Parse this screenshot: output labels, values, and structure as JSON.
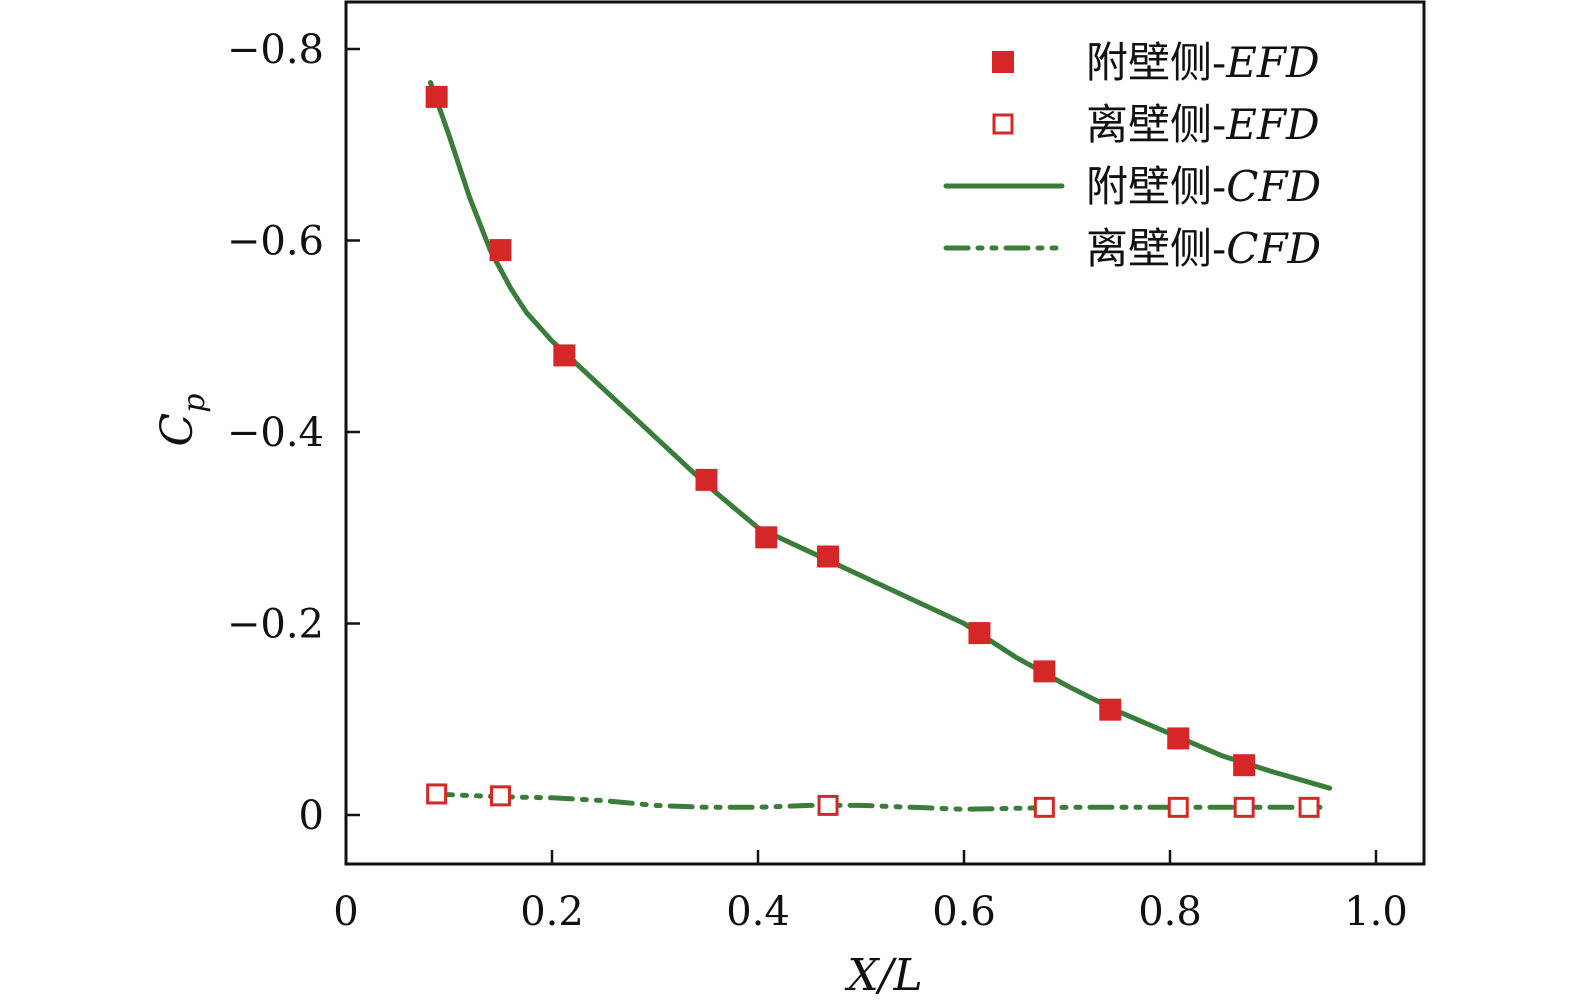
{
  "chart_data": {
    "type": "line",
    "xlabel": "X/L",
    "ylabel": "C",
    "ylabel_sub": "p",
    "xlim": [
      0,
      1.05
    ],
    "ylim": [
      0.05,
      -0.85
    ],
    "y_inverted": true,
    "grid": false,
    "legend_position": "top-right",
    "x_ticks": [
      0,
      0.2,
      0.4,
      0.6,
      0.8,
      1.0
    ],
    "x_tick_labels": [
      "0",
      "0.2",
      "0.4",
      "0.6",
      "0.8",
      "1.0"
    ],
    "y_ticks": [
      0,
      -0.2,
      -0.4,
      -0.6,
      -0.8
    ],
    "y_tick_labels": [
      "0",
      "−0.2",
      "−0.4",
      "−0.6",
      "−0.8"
    ],
    "series": [
      {
        "name_prefix": "附壁侧-",
        "name_suffix": "EFD",
        "kind": "scatter",
        "marker": "filled-square",
        "color": "#d62728",
        "x": [
          0.088,
          0.15,
          0.212,
          0.35,
          0.408,
          0.468,
          0.615,
          0.678,
          0.742,
          0.808,
          0.872
        ],
        "y": [
          -0.75,
          -0.59,
          -0.48,
          -0.35,
          -0.29,
          -0.27,
          -0.19,
          -0.15,
          -0.11,
          -0.08,
          -0.052
        ]
      },
      {
        "name_prefix": "离壁侧-",
        "name_suffix": "EFD",
        "kind": "scatter",
        "marker": "open-square",
        "color": "#d62728",
        "x": [
          0.088,
          0.15,
          0.468,
          0.678,
          0.808,
          0.872,
          0.935
        ],
        "y": [
          -0.022,
          -0.02,
          -0.01,
          -0.008,
          -0.008,
          -0.008,
          -0.008
        ]
      },
      {
        "name_prefix": "附壁侧-",
        "name_suffix": "CFD",
        "kind": "line",
        "line_style": "solid",
        "color": "#3a7d3a",
        "x": [
          0.082,
          0.1,
          0.12,
          0.14,
          0.16,
          0.175,
          0.2,
          0.25,
          0.3,
          0.35,
          0.4,
          0.45,
          0.5,
          0.55,
          0.6,
          0.65,
          0.7,
          0.75,
          0.8,
          0.85,
          0.9,
          0.955
        ],
        "y": [
          -0.765,
          -0.71,
          -0.645,
          -0.59,
          -0.55,
          -0.525,
          -0.495,
          -0.445,
          -0.395,
          -0.345,
          -0.3,
          -0.275,
          -0.25,
          -0.225,
          -0.2,
          -0.165,
          -0.135,
          -0.108,
          -0.085,
          -0.062,
          -0.045,
          -0.028
        ]
      },
      {
        "name_prefix": "离壁侧-",
        "name_suffix": "CFD",
        "kind": "line",
        "line_style": "dash-dot-dot",
        "color": "#3a7d3a",
        "x": [
          0.082,
          0.15,
          0.2,
          0.25,
          0.3,
          0.35,
          0.4,
          0.45,
          0.5,
          0.55,
          0.6,
          0.65,
          0.7,
          0.75,
          0.8,
          0.85,
          0.9,
          0.955
        ],
        "y": [
          -0.022,
          -0.019,
          -0.018,
          -0.015,
          -0.01,
          -0.008,
          -0.008,
          -0.01,
          -0.01,
          -0.008,
          -0.006,
          -0.007,
          -0.008,
          -0.008,
          -0.008,
          -0.008,
          -0.008,
          -0.008
        ]
      }
    ]
  }
}
